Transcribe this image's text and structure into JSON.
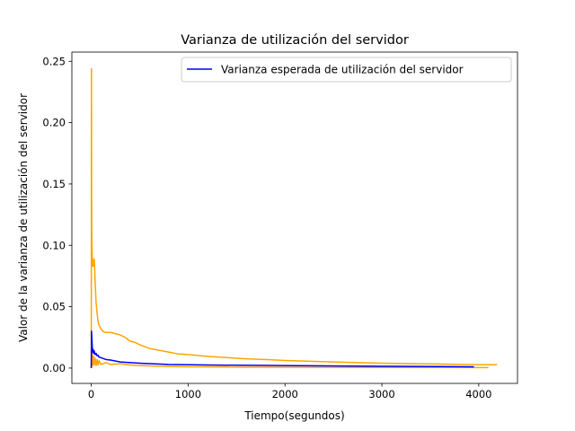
{
  "chart_data": {
    "type": "line",
    "title": "Varianza de utilización del servidor",
    "xlabel": "Tiempo(segundos)",
    "ylabel": "Valor de la varianza de utilización del servidor",
    "xlim": [
      -200,
      4400
    ],
    "ylim": [
      -0.0125,
      0.2575
    ],
    "x_ticks": [
      0,
      1000,
      2000,
      3000,
      4000
    ],
    "x_tick_labels": [
      "0",
      "1000",
      "2000",
      "3000",
      "4000"
    ],
    "y_ticks": [
      0.0,
      0.05,
      0.1,
      0.15,
      0.2,
      0.25
    ],
    "y_tick_labels": [
      "0.00",
      "0.05",
      "0.10",
      "0.15",
      "0.20",
      "0.25"
    ],
    "legend_position": "top-right",
    "grid": false,
    "series": [
      {
        "name": "Varianza esperada de utilización del servidor",
        "color": "#0000ff",
        "in_legend": true,
        "x": [
          0,
          3,
          6,
          10,
          15,
          20,
          25,
          30,
          40,
          50,
          60,
          70,
          80,
          100,
          150,
          200,
          300,
          500,
          800,
          1200,
          2000,
          3000,
          3950
        ],
        "y": [
          0.0,
          0.03,
          0.025,
          0.018,
          0.013,
          0.015,
          0.012,
          0.014,
          0.011,
          0.012,
          0.01,
          0.0105,
          0.009,
          0.0085,
          0.007,
          0.0065,
          0.005,
          0.004,
          0.003,
          0.0025,
          0.002,
          0.0015,
          0.001
        ]
      },
      {
        "name": "",
        "color": "#ffa500",
        "in_legend": false,
        "x": [
          0,
          1,
          2,
          3,
          4,
          5,
          6,
          8,
          10,
          12,
          15,
          20,
          25,
          30,
          35,
          40,
          45,
          50,
          60,
          70,
          80,
          100,
          120,
          150,
          200,
          250,
          300,
          350,
          400,
          450,
          500,
          600,
          700,
          800,
          900,
          1000,
          1200,
          1400,
          1600,
          1800,
          2000,
          2500,
          3000,
          3500,
          4000,
          4190
        ],
        "y": [
          0.0,
          0.1,
          0.244,
          0.2,
          0.15,
          0.12,
          0.105,
          0.098,
          0.09,
          0.083,
          0.084,
          0.088,
          0.083,
          0.089,
          0.082,
          0.07,
          0.062,
          0.053,
          0.045,
          0.038,
          0.035,
          0.032,
          0.03,
          0.029,
          0.029,
          0.028,
          0.027,
          0.025,
          0.022,
          0.021,
          0.019,
          0.016,
          0.0145,
          0.013,
          0.0115,
          0.011,
          0.0095,
          0.0085,
          0.0075,
          0.007,
          0.0062,
          0.005,
          0.004,
          0.0034,
          0.0028,
          0.0028
        ]
      },
      {
        "name": "",
        "color": "#ffa500",
        "in_legend": false,
        "x": [
          0,
          2,
          4,
          6,
          8,
          10,
          14,
          18,
          22,
          26,
          30,
          40,
          50,
          60,
          70,
          80,
          100,
          150,
          200,
          300,
          400,
          500,
          700,
          1000,
          1500,
          2000,
          3000,
          4000,
          4100
        ],
        "y": [
          0.0,
          0.01,
          0.002,
          0.015,
          0.003,
          0.012,
          0.002,
          0.01,
          0.003,
          0.009,
          0.0025,
          0.008,
          0.002,
          0.007,
          0.0025,
          0.006,
          0.003,
          0.0045,
          0.003,
          0.0035,
          0.0025,
          0.002,
          0.0015,
          0.001,
          0.0008,
          0.0007,
          0.0005,
          0.0004,
          0.0004
        ]
      }
    ]
  }
}
